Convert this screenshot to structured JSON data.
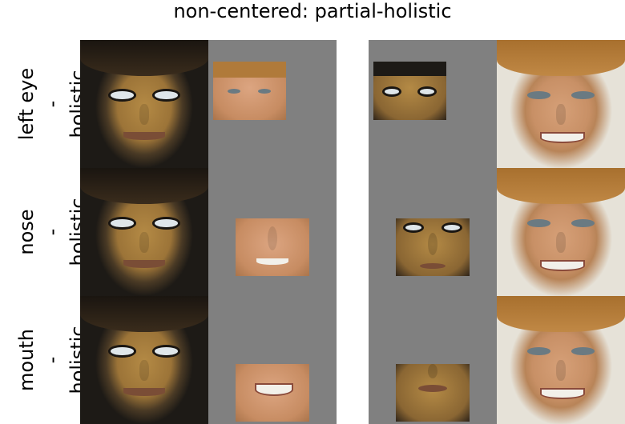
{
  "title": "non-centered: partial-holistic",
  "rows": [
    {
      "part": "left eye",
      "dash": "-",
      "holistic": "holistic"
    },
    {
      "part": "nose",
      "dash": "-",
      "holistic": "holistic"
    },
    {
      "part": "mouth",
      "dash": "-",
      "holistic": "holistic"
    }
  ]
}
